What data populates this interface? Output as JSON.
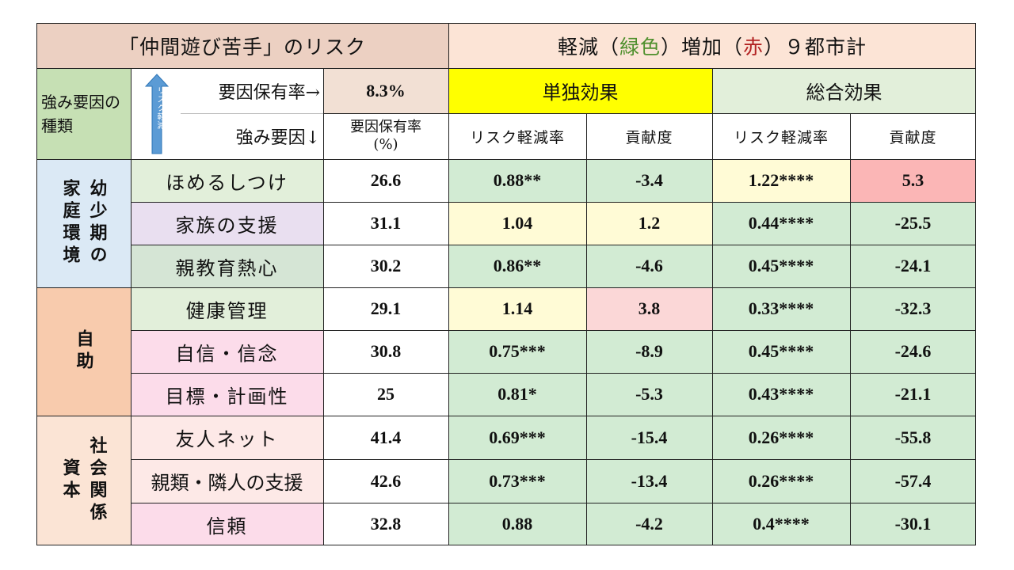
{
  "header": {
    "title": "「仲間遊び苦手」のリスク",
    "legend_prefix": "軽減（",
    "legend_green": "緑色",
    "legend_mid": "）増加（",
    "legend_red": "赤",
    "legend_suffix": "）９都市計",
    "factor_kind_label": "強み要因の種類",
    "arrow_text": "リスク軽減",
    "holding_rate_label": "要因保有率→",
    "holding_rate_value": "8.3%",
    "strength_factor_label": "強み要因↓",
    "single_effect": "単独効果",
    "total_effect": "総合効果",
    "col_rate": "要因保有率(%)",
    "col_risk_single": "リスク軽減率",
    "col_contrib_single": "貢献度",
    "col_risk_total": "リスク軽減率",
    "col_contrib_total": "貢献度"
  },
  "groups": [
    {
      "label": "幼少期の家庭環境",
      "rows": [
        {
          "factor": "ほめるしつけ",
          "rate": "26.6",
          "risk_single": "0.88**",
          "contrib_single": "-3.4",
          "risk_total": "1.22****",
          "contrib_total": "5.3"
        },
        {
          "factor": "家族の支援",
          "rate": "31.1",
          "risk_single": "1.04",
          "contrib_single": "1.2",
          "risk_total": "0.44****",
          "contrib_total": "-25.5"
        },
        {
          "factor": "親教育熱心",
          "rate": "30.2",
          "risk_single": "0.86**",
          "contrib_single": "-4.6",
          "risk_total": "0.45****",
          "contrib_total": "-24.1"
        }
      ]
    },
    {
      "label": "自助",
      "rows": [
        {
          "factor": "健康管理",
          "rate": "29.1",
          "risk_single": "1.14",
          "contrib_single": "3.8",
          "risk_total": "0.33****",
          "contrib_total": "-32.3"
        },
        {
          "factor": "自信・信念",
          "rate": "30.8",
          "risk_single": "0.75***",
          "contrib_single": "-8.9",
          "risk_total": "0.45****",
          "contrib_total": "-24.6"
        },
        {
          "factor": "目標・計画性",
          "rate": "25",
          "risk_single": "0.81*",
          "contrib_single": "-5.3",
          "risk_total": "0.43****",
          "contrib_total": "-21.1"
        }
      ]
    },
    {
      "label": "社会関係資本",
      "rows": [
        {
          "factor": "友人ネット",
          "rate": "41.4",
          "risk_single": "0.69***",
          "contrib_single": "-15.4",
          "risk_total": "0.26****",
          "contrib_total": "-55.8"
        },
        {
          "factor": "親類・隣人の支援",
          "rate": "42.6",
          "risk_single": "0.73***",
          "contrib_single": "-13.4",
          "risk_total": "0.26****",
          "contrib_total": "-57.4"
        },
        {
          "factor": "信頼",
          "rate": "32.8",
          "risk_single": "0.88",
          "contrib_single": "-4.2",
          "risk_total": "0.4****",
          "contrib_total": "-30.1"
        }
      ]
    }
  ],
  "colors": {
    "title_bg": "#ecd0c2",
    "legend_bg": "#fce4d6",
    "factor_kind_bg": "#c6e0b4",
    "rate_hdr_bg": "#f2e0d4",
    "single_bg": "#ffff00",
    "total_bg": "#e2efda",
    "green": "#d2ebd3",
    "yellow": "#fffbd6",
    "pink": "#fbd7d7",
    "red": "#fbb6b6",
    "legend_green_text": "#4e8f2c",
    "legend_red_text": "#b22222",
    "arrow": "#5b9bd5",
    "group1": "#dbe9f5",
    "group2": "#f8cbad",
    "group3": "#fbe4d5",
    "factor_light_green": "#e2efda",
    "factor_lavender": "#e9dff0",
    "factor_sage": "#d5e5d5",
    "factor_pink": "#fcdcea",
    "factor_light_pink": "#fde9e7"
  }
}
